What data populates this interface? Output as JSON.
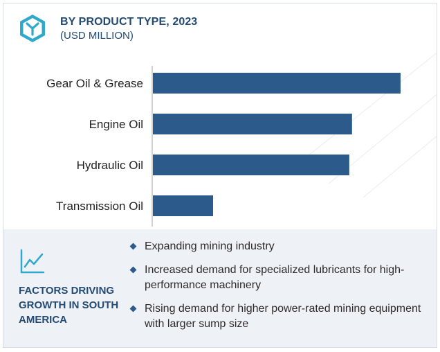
{
  "header": {
    "title": "BY PRODUCT TYPE, 2023",
    "subtitle": "(USD MILLION)",
    "logo_icon": "hexagon-y-logo-icon"
  },
  "chart_data": {
    "type": "bar",
    "orientation": "horizontal",
    "title": "BY PRODUCT TYPE, 2023",
    "subtitle": "(USD MILLION)",
    "categories": [
      "Gear Oil & Grease",
      "Engine Oil",
      "Hydraulic Oil",
      "Transmission Oil"
    ],
    "values": [
      100,
      80.4,
      79.3,
      24.3
    ],
    "xlabel": "",
    "ylabel": "",
    "xlim": [
      0,
      100
    ],
    "grid": false,
    "legend": "none",
    "bar_color": "#2c5a8a"
  },
  "factors": {
    "icon": "trend-line-chart-icon",
    "title": "FACTORS DRIVING GROWTH IN SOUTH AMERICA",
    "items": [
      "Expanding mining industry",
      "Increased demand for specialized lubricants for high-performance machinery",
      "Rising demand for higher power-rated mining equipment with larger sump size"
    ]
  }
}
